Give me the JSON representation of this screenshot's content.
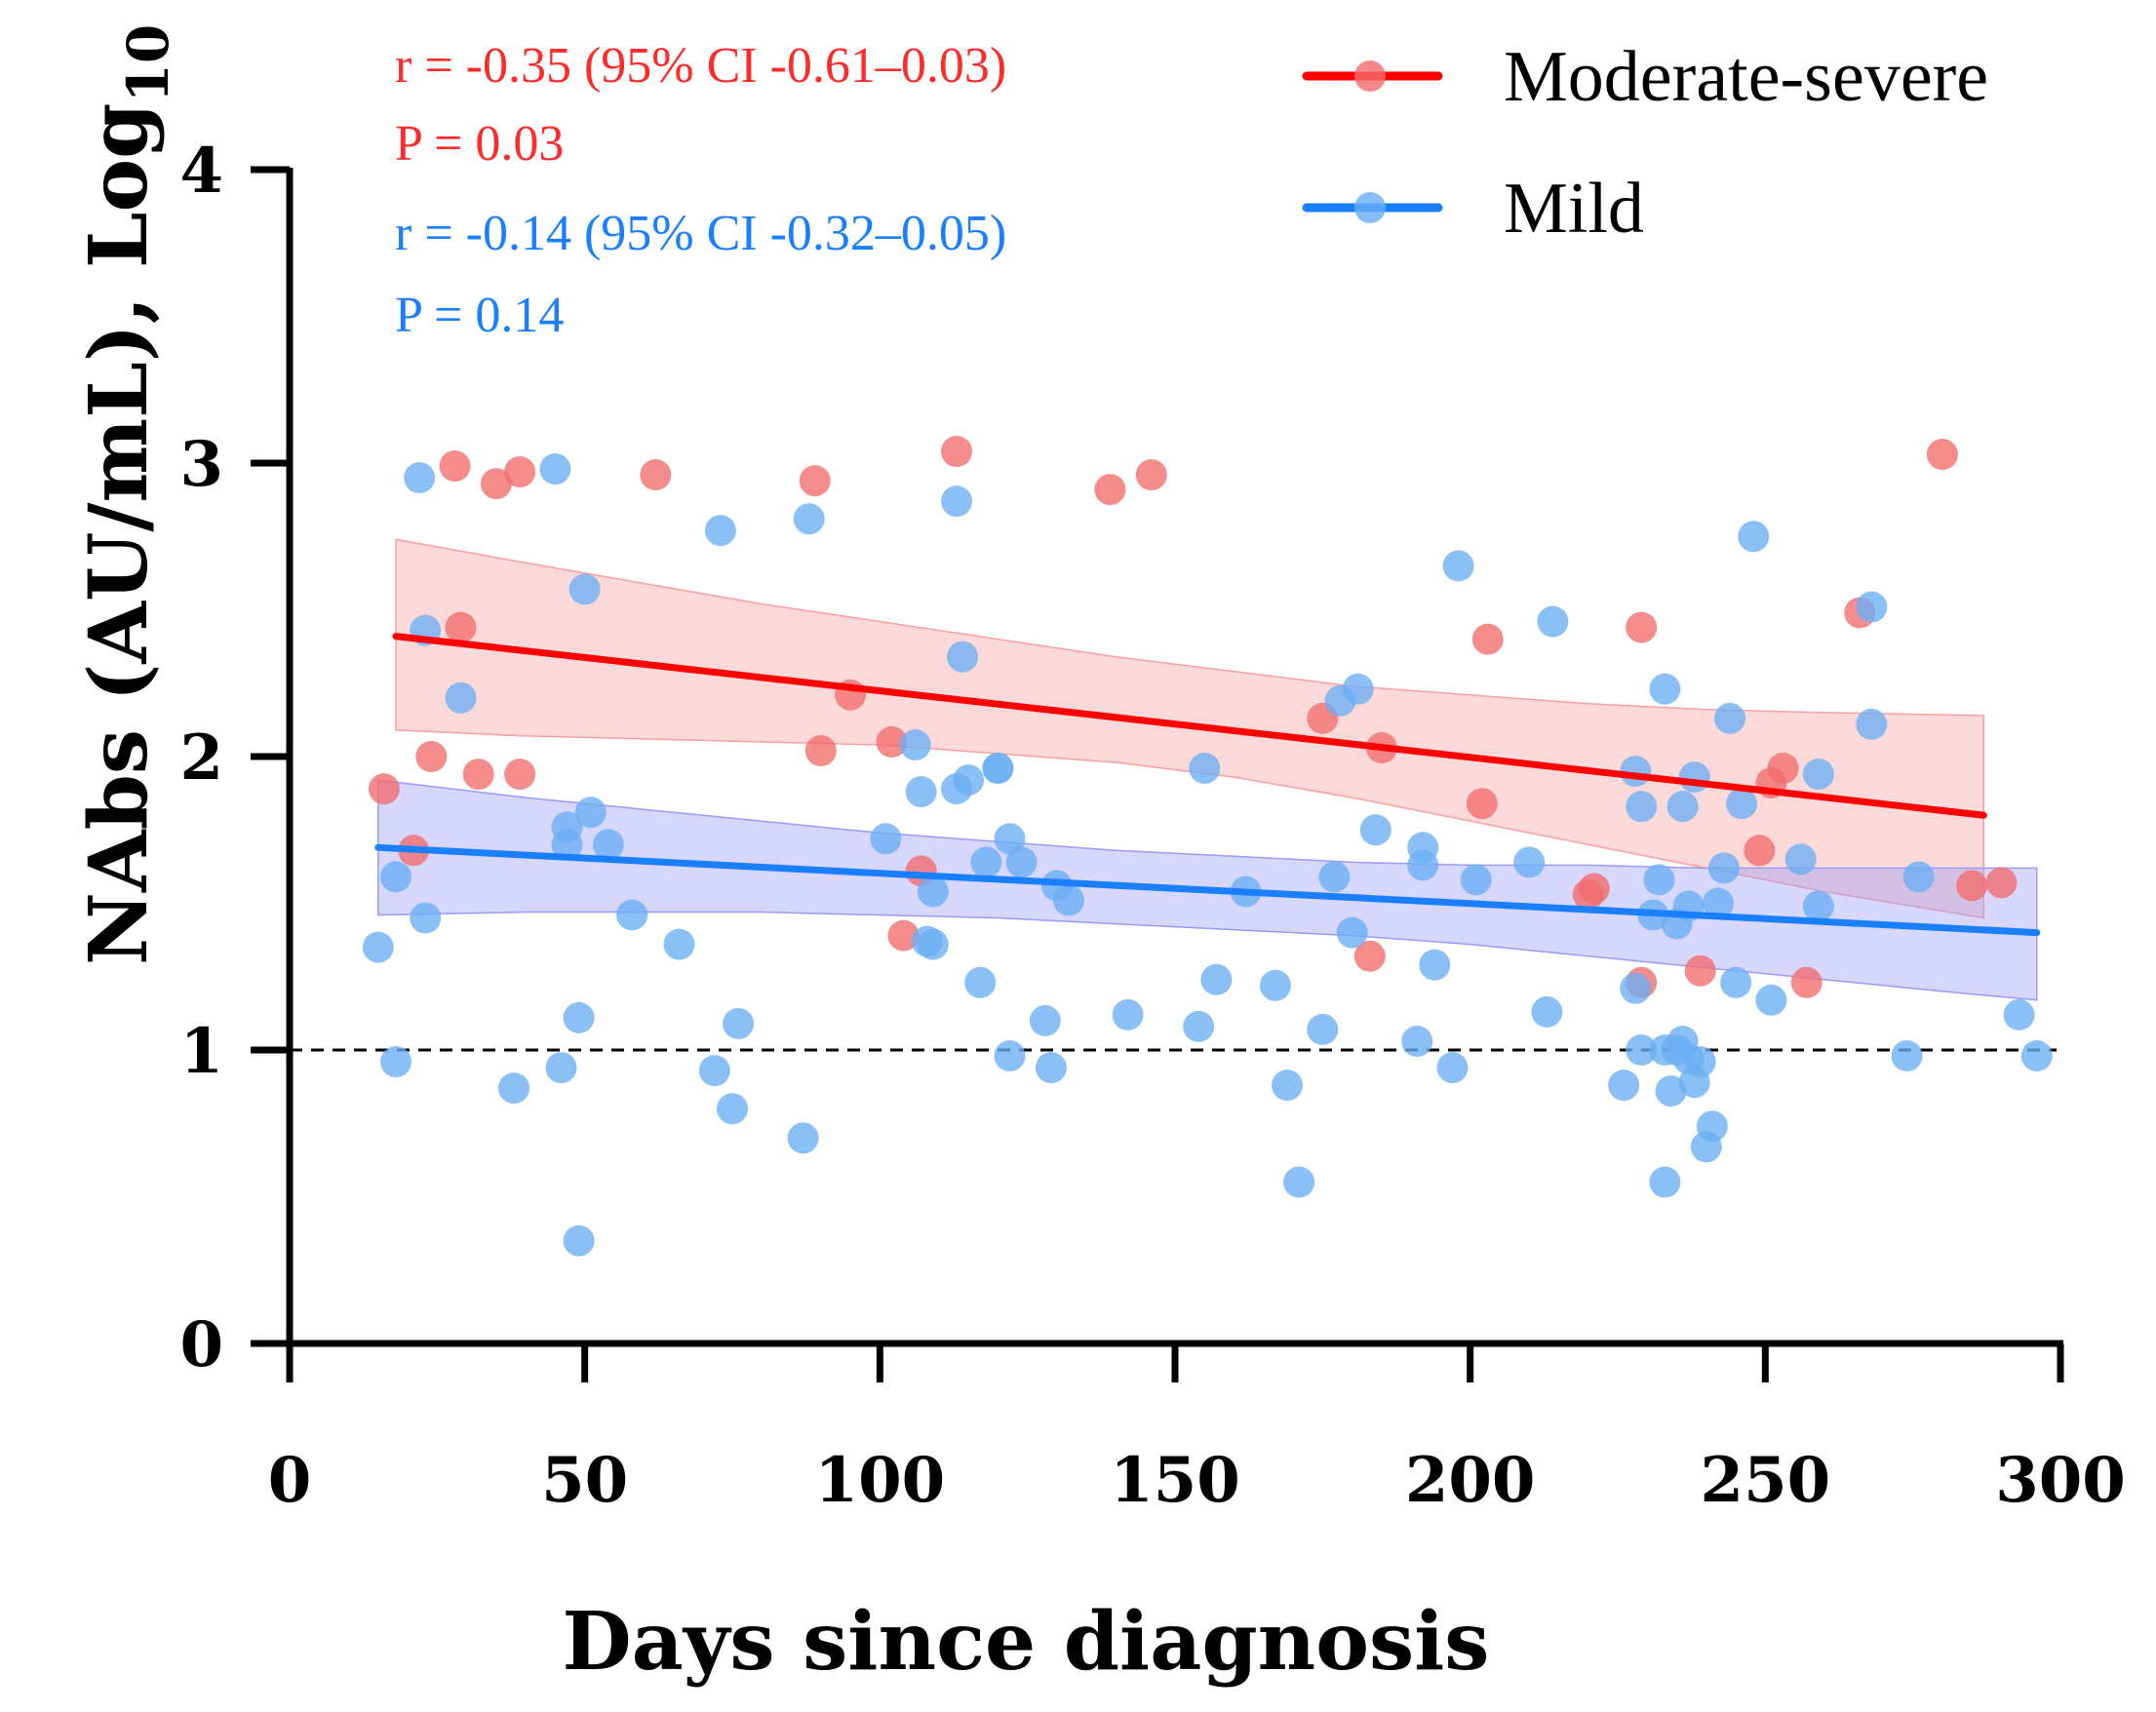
{
  "chart_data": {
    "type": "scatter",
    "xlabel": "Days since diagnosis",
    "ylabel_main": "NAbs (AU/mL), Log",
    "ylabel_sub": "10",
    "xlim": [
      0,
      300
    ],
    "ylim": [
      0,
      4
    ],
    "xticks": [
      0,
      50,
      100,
      150,
      200,
      250,
      300
    ],
    "yticks": [
      0,
      1,
      2,
      3,
      4
    ],
    "reference_line": {
      "y": 1,
      "style": "dashed",
      "color": "#000000"
    },
    "stats": [
      {
        "text": "r = -0.35 (95% CI -0.61–0.03)",
        "color": "#ff2a2a"
      },
      {
        "text": "P = 0.03",
        "color": "#ff2a2a"
      },
      {
        "text": "r = -0.14 (95% CI -0.32–0.05)",
        "color": "#1a7fff"
      },
      {
        "text": "P = 0.14",
        "color": "#1a7fff"
      }
    ],
    "series": [
      {
        "name": "Moderate-severe",
        "point_color": "#f26b6b",
        "line_color": "#ff0000",
        "band_color": "#f7a0a0",
        "fit": {
          "x": [
            18,
            287
          ],
          "y": [
            2.41,
            1.8
          ]
        },
        "ci_band": {
          "x": [
            18,
            40,
            60,
            80,
            100,
            120,
            140,
            160,
            180,
            200,
            220,
            240,
            260,
            287
          ],
          "lower": [
            2.09,
            2.07,
            2.06,
            2.05,
            2.04,
            2.01,
            1.98,
            1.93,
            1.86,
            1.78,
            1.7,
            1.62,
            1.54,
            1.45
          ],
          "upper": [
            2.74,
            2.66,
            2.59,
            2.52,
            2.46,
            2.4,
            2.34,
            2.29,
            2.24,
            2.21,
            2.18,
            2.16,
            2.15,
            2.14
          ]
        },
        "points": [
          [
            16,
            1.89
          ],
          [
            21,
            1.68
          ],
          [
            24,
            2.0
          ],
          [
            28,
            2.99
          ],
          [
            29,
            2.44
          ],
          [
            32,
            1.94
          ],
          [
            35,
            2.93
          ],
          [
            39,
            1.94
          ],
          [
            39,
            2.97
          ],
          [
            62,
            2.96
          ],
          [
            89,
            2.94
          ],
          [
            90,
            2.02
          ],
          [
            95,
            2.21
          ],
          [
            102,
            2.05
          ],
          [
            104,
            1.39
          ],
          [
            107,
            1.61
          ],
          [
            113,
            3.04
          ],
          [
            139,
            2.91
          ],
          [
            146,
            2.96
          ],
          [
            175,
            2.13
          ],
          [
            183,
            1.32
          ],
          [
            185,
            2.03
          ],
          [
            202,
            1.84
          ],
          [
            203,
            2.4
          ],
          [
            220,
            1.53
          ],
          [
            221,
            1.55
          ],
          [
            229,
            1.23
          ],
          [
            229,
            2.44
          ],
          [
            239,
            1.27
          ],
          [
            249,
            1.68
          ],
          [
            251,
            1.91
          ],
          [
            253,
            1.96
          ],
          [
            257,
            1.23
          ],
          [
            266,
            2.49
          ],
          [
            280,
            3.03
          ],
          [
            285,
            1.56
          ],
          [
            290,
            1.57
          ]
        ]
      },
      {
        "name": "Mild",
        "point_color": "#6aaef5",
        "line_color": "#1a7fff",
        "band_color": "#9a9af8",
        "fit": {
          "x": [
            15,
            296
          ],
          "y": [
            1.69,
            1.4
          ]
        },
        "ci_band": {
          "x": [
            15,
            40,
            60,
            80,
            100,
            120,
            140,
            160,
            180,
            200,
            220,
            240,
            260,
            280,
            296
          ],
          "lower": [
            1.46,
            1.47,
            1.47,
            1.47,
            1.46,
            1.45,
            1.43,
            1.41,
            1.39,
            1.36,
            1.32,
            1.28,
            1.24,
            1.2,
            1.17
          ],
          "upper": [
            1.92,
            1.86,
            1.82,
            1.78,
            1.74,
            1.71,
            1.68,
            1.66,
            1.64,
            1.63,
            1.63,
            1.62,
            1.62,
            1.62,
            1.62
          ]
        },
        "points": [
          [
            15,
            1.35
          ],
          [
            18,
            0.96
          ],
          [
            18,
            1.59
          ],
          [
            22,
            2.95
          ],
          [
            23,
            1.45
          ],
          [
            23,
            2.43
          ],
          [
            29,
            2.2
          ],
          [
            38,
            0.87
          ],
          [
            45,
            2.98
          ],
          [
            46,
            0.94
          ],
          [
            47,
            1.7
          ],
          [
            47,
            1.76
          ],
          [
            49,
            0.35
          ],
          [
            49,
            1.11
          ],
          [
            50,
            2.57
          ],
          [
            51,
            1.81
          ],
          [
            54,
            1.7
          ],
          [
            58,
            1.46
          ],
          [
            66,
            1.36
          ],
          [
            72,
            0.93
          ],
          [
            73,
            2.77
          ],
          [
            75,
            0.8
          ],
          [
            76,
            1.09
          ],
          [
            87,
            0.7
          ],
          [
            88,
            2.81
          ],
          [
            101,
            1.72
          ],
          [
            106,
            2.04
          ],
          [
            107,
            1.88
          ],
          [
            108,
            1.37
          ],
          [
            109,
            1.36
          ],
          [
            109,
            1.54
          ],
          [
            113,
            1.89
          ],
          [
            113,
            2.87
          ],
          [
            114,
            2.34
          ],
          [
            115,
            1.92
          ],
          [
            117,
            1.23
          ],
          [
            118,
            1.64
          ],
          [
            120,
            1.96
          ],
          [
            120,
            1.96
          ],
          [
            122,
            0.98
          ],
          [
            122,
            1.72
          ],
          [
            124,
            1.64
          ],
          [
            128,
            1.1
          ],
          [
            129,
            0.94
          ],
          [
            130,
            1.56
          ],
          [
            132,
            1.51
          ],
          [
            142,
            1.12
          ],
          [
            154,
            1.08
          ],
          [
            155,
            1.96
          ],
          [
            157,
            1.24
          ],
          [
            162,
            1.54
          ],
          [
            167,
            1.22
          ],
          [
            169,
            0.88
          ],
          [
            171,
            0.55
          ],
          [
            175,
            1.07
          ],
          [
            177,
            1.59
          ],
          [
            178,
            2.19
          ],
          [
            180,
            1.4
          ],
          [
            181,
            2.23
          ],
          [
            184,
            1.75
          ],
          [
            191,
            1.03
          ],
          [
            192,
            1.63
          ],
          [
            192,
            1.69
          ],
          [
            194,
            1.29
          ],
          [
            197,
            0.94
          ],
          [
            198,
            2.65
          ],
          [
            201,
            1.58
          ],
          [
            210,
            1.64
          ],
          [
            213,
            1.13
          ],
          [
            214,
            2.46
          ],
          [
            226,
            0.88
          ],
          [
            228,
            1.95
          ],
          [
            228,
            1.21
          ],
          [
            229,
            1.83
          ],
          [
            229,
            1.0
          ],
          [
            231,
            1.46
          ],
          [
            232,
            1.58
          ],
          [
            233,
            0.55
          ],
          [
            233,
            1.0
          ],
          [
            233,
            2.23
          ],
          [
            234,
            0.86
          ],
          [
            235,
            1.43
          ],
          [
            235,
            1.0
          ],
          [
            236,
            1.83
          ],
          [
            236,
            1.03
          ],
          [
            237,
            0.97
          ],
          [
            237,
            1.49
          ],
          [
            238,
            0.89
          ],
          [
            238,
            1.93
          ],
          [
            239,
            0.96
          ],
          [
            240,
            0.67
          ],
          [
            241,
            0.74
          ],
          [
            242,
            1.5
          ],
          [
            243,
            1.62
          ],
          [
            244,
            2.13
          ],
          [
            245,
            1.23
          ],
          [
            246,
            1.84
          ],
          [
            248,
            2.75
          ],
          [
            251,
            1.17
          ],
          [
            256,
            1.65
          ],
          [
            259,
            1.94
          ],
          [
            259,
            1.49
          ],
          [
            268,
            2.11
          ],
          [
            268,
            2.51
          ],
          [
            274,
            0.98
          ],
          [
            276,
            1.59
          ],
          [
            293,
            1.12
          ],
          [
            296,
            0.98
          ]
        ]
      }
    ]
  }
}
